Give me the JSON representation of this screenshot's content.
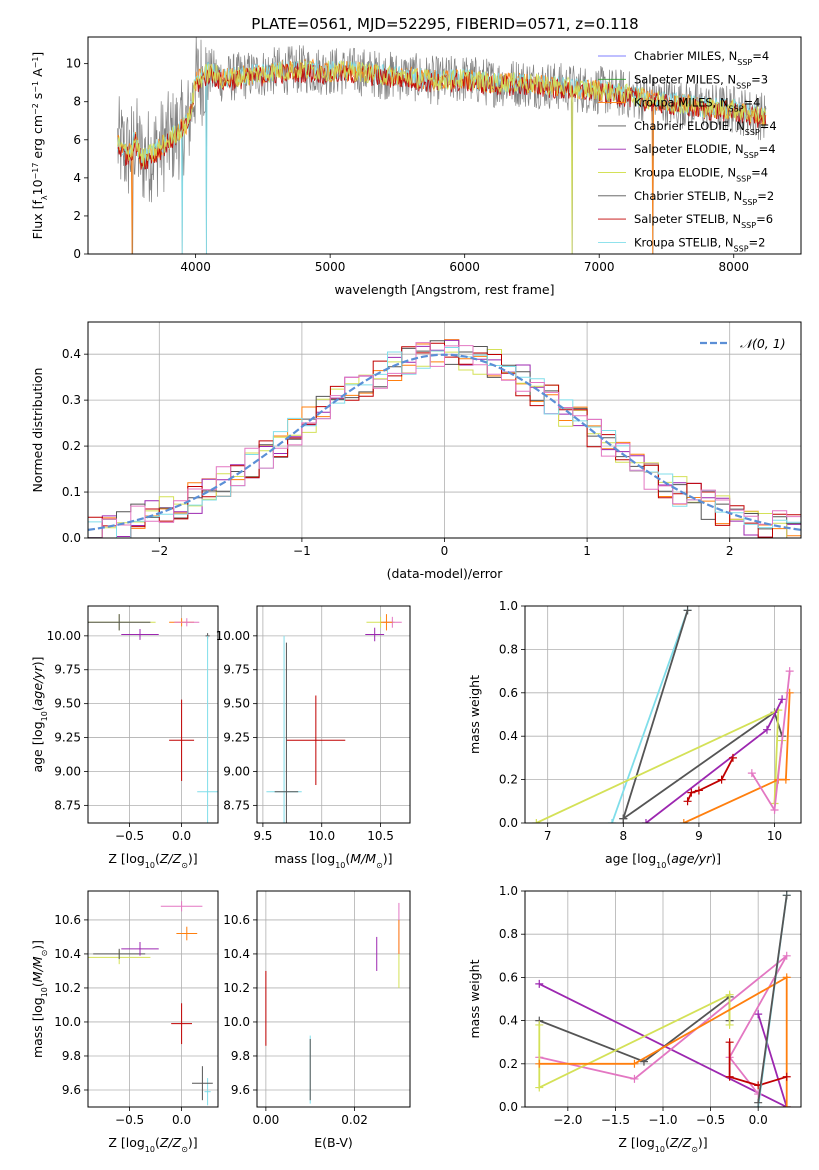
{
  "figure": {
    "title": "PLATE=0561, MJD=52295, FIBERID=0571, z=0.118"
  },
  "colors": {
    "series": [
      "#7f7fff",
      "#2ca02c",
      "#ff7f0e",
      "#555555",
      "#9c27b0",
      "#d4e157",
      "#555555",
      "#c00000",
      "#80deea"
    ],
    "pink": "#e377c2",
    "model_data": "#808080",
    "grid": "#b0b0b0",
    "normal_curve": "#5b8fd6"
  },
  "chart_data": [
    {
      "id": "spectrum",
      "type": "line",
      "xlabel": "wavelength [Angstrom, rest frame]",
      "ylabel": "Flux [f_λ10^-17 erg cm^-2 s^-1 A^-1]",
      "xlim": [
        3200,
        8500
      ],
      "ylim": [
        0,
        11.4
      ],
      "xticks": [
        4000,
        5000,
        6000,
        7000,
        8000
      ],
      "yticks": [
        0,
        2,
        4,
        6,
        8,
        10
      ],
      "grid": false,
      "legend_position": "top-right",
      "legend": [
        {
          "imf": "Chabrier MILES",
          "n": "4"
        },
        {
          "imf": "Salpeter MILES",
          "n": "3"
        },
        {
          "imf": "Kroupa MILES",
          "n": "4"
        },
        {
          "imf": "Chabrier ELODIE",
          "n": "4"
        },
        {
          "imf": "Salpeter ELODIE",
          "n": "4"
        },
        {
          "imf": "Kroupa ELODIE",
          "n": "4"
        },
        {
          "imf": "Chabrier STELIB",
          "n": "2"
        },
        {
          "imf": "Salpeter STELIB",
          "n": "6"
        },
        {
          "imf": "Kroupa STELIB",
          "n": "2"
        }
      ],
      "continuum": {
        "x": [
          3420,
          3500,
          3550,
          3600,
          3700,
          3800,
          3900,
          3950,
          4000,
          4100,
          4200,
          4400,
          4600,
          4800,
          5000,
          5200,
          5400,
          5600,
          5800,
          6000,
          6200,
          6400,
          6600,
          6800,
          7000,
          7200,
          7400,
          7600,
          7800,
          8000,
          8240
        ],
        "y": [
          5.8,
          5.2,
          6.0,
          5.0,
          5.4,
          6.0,
          6.6,
          7.0,
          9.0,
          9.6,
          9.2,
          9.4,
          9.6,
          9.7,
          9.6,
          9.6,
          9.4,
          9.3,
          9.1,
          9.2,
          9.0,
          9.0,
          8.9,
          8.7,
          8.6,
          8.4,
          8.1,
          7.9,
          7.7,
          7.6,
          7.2
        ]
      },
      "masked_drops": [
        3530,
        3900,
        4080,
        6800,
        7400
      ]
    },
    {
      "id": "residuals",
      "type": "histogram",
      "xlabel": "(data-model)/error",
      "ylabel": "Normed distribution",
      "xlim": [
        -2.5,
        2.5
      ],
      "ylim": [
        0,
        0.47
      ],
      "xticks": [
        -2,
        -1,
        0,
        1,
        2
      ],
      "yticks": [
        0,
        0.1,
        0.2,
        0.3,
        0.4
      ],
      "grid": true,
      "bin_width": 0.1,
      "legend_position": "top-right",
      "reference_curve": {
        "name": "𝒩(0, 1)",
        "mu": 0,
        "sigma": 1
      }
    },
    {
      "id": "age_vs_Z",
      "type": "scatter",
      "xlabel": "Z [log10(Z/Z☉)]",
      "ylabel": "age  [log10(age/yr)]",
      "xlim": [
        -0.9,
        0.35
      ],
      "ylim": [
        8.62,
        10.22
      ],
      "xticks": [
        -0.5,
        0.0
      ],
      "yticks": [
        8.75,
        9.0,
        9.25,
        9.5,
        9.75,
        10.0
      ],
      "grid": true,
      "points": [
        {
          "x": -0.6,
          "y": 10.1,
          "xerr": 0.35,
          "yerr": 0.06,
          "c": 5
        },
        {
          "x": -0.6,
          "y": 10.1,
          "xerr": 0.3,
          "yerr": 0.06,
          "c": 3
        },
        {
          "x": -0.4,
          "y": 10.01,
          "xerr": 0.18,
          "yerr": 0.04,
          "c": 4
        },
        {
          "x": 0.0,
          "y": 10.1,
          "xerr": 0.12,
          "yerr": 0.03,
          "c": 2
        },
        {
          "x": 0.05,
          "y": 10.1,
          "xerr": 0.12,
          "yerr": 0.03,
          "c": -1
        },
        {
          "x": 0.25,
          "y": 10.0,
          "xerr": 0.02,
          "yerr": 0.02,
          "c": 3
        },
        {
          "x": 0.0,
          "y": 9.23,
          "xerr": 0.12,
          "yerr": 0.3,
          "c": 7
        },
        {
          "x": 0.25,
          "y": 8.85,
          "xerr": 0.1,
          "yerr": 1.15,
          "c": 8
        }
      ]
    },
    {
      "id": "age_vs_mass",
      "type": "scatter",
      "xlabel": "mass [log10(M/M☉)]",
      "ylabel": "",
      "xlim": [
        9.45,
        10.75
      ],
      "ylim": [
        8.62,
        10.22
      ],
      "xticks": [
        9.5,
        10.0,
        10.5
      ],
      "yticks": [
        8.75,
        9.0,
        9.25,
        9.5,
        9.75,
        10.0
      ],
      "grid": true,
      "points": [
        {
          "x": 10.5,
          "y": 10.1,
          "xerr": 0.12,
          "yerr": 0.04,
          "c": 5
        },
        {
          "x": 10.6,
          "y": 10.1,
          "xerr": 0.08,
          "yerr": 0.04,
          "c": -1
        },
        {
          "x": 10.55,
          "y": 10.1,
          "xerr": 0.05,
          "yerr": 0.06,
          "c": 2
        },
        {
          "x": 10.45,
          "y": 10.01,
          "xerr": 0.08,
          "yerr": 0.05,
          "c": 4
        },
        {
          "x": 9.95,
          "y": 9.23,
          "xerr": 0.25,
          "yerr": 0.33,
          "c": 7
        },
        {
          "x": 9.68,
          "y": 8.85,
          "xerr": 0.15,
          "yerr": 1.15,
          "c": 8
        },
        {
          "x": 9.7,
          "y": 8.85,
          "xerr": 0.1,
          "yerr": 1.1,
          "c": 6
        }
      ]
    },
    {
      "id": "weight_vs_age",
      "type": "line",
      "xlabel": "age  [log10(age/yr)]",
      "ylabel": "mass weight",
      "xlim": [
        6.7,
        10.35
      ],
      "ylim": [
        0,
        1.0
      ],
      "xticks": [
        7,
        8,
        9,
        10
      ],
      "yticks": [
        0.0,
        0.2,
        0.4,
        0.6,
        0.8,
        1.0
      ],
      "grid": true,
      "series": [
        {
          "c": 8,
          "x": [
            7.85,
            8.85
          ],
          "y": [
            0.0,
            0.98
          ]
        },
        {
          "c": 6,
          "x": [
            8.0,
            8.85
          ],
          "y": [
            0.02,
            0.98
          ]
        },
        {
          "c": 3,
          "x": [
            8.0,
            10.0,
            10.1
          ],
          "y": [
            0.02,
            0.51,
            0.4
          ]
        },
        {
          "c": 5,
          "x": [
            6.85,
            10.05,
            10.0,
            10.1
          ],
          "y": [
            0.0,
            0.52,
            0.09,
            0.38
          ]
        },
        {
          "c": 4,
          "x": [
            8.3,
            9.9,
            10.1
          ],
          "y": [
            0.0,
            0.43,
            0.57
          ]
        },
        {
          "c": 7,
          "x": [
            8.85,
            8.9,
            9.0,
            9.3,
            9.45
          ],
          "y": [
            0.1,
            0.14,
            0.15,
            0.2,
            0.3
          ]
        },
        {
          "c": 2,
          "x": [
            8.8,
            10.05,
            10.15,
            10.2
          ],
          "y": [
            0.0,
            0.2,
            0.2,
            0.6
          ]
        },
        {
          "c": -1,
          "x": [
            9.7,
            10.0,
            10.2
          ],
          "y": [
            0.23,
            0.06,
            0.7
          ]
        }
      ]
    },
    {
      "id": "mass_vs_Z",
      "type": "scatter",
      "xlabel": "Z [log10(Z/Z☉)]",
      "ylabel": "mass [log10(M/M☉)]",
      "xlim": [
        -0.9,
        0.35
      ],
      "ylim": [
        9.5,
        10.77
      ],
      "xticks": [
        -0.5,
        0.0
      ],
      "yticks": [
        9.6,
        9.8,
        10.0,
        10.2,
        10.4,
        10.6
      ],
      "grid": true,
      "points": [
        {
          "x": -0.6,
          "y": 10.38,
          "xerr": 0.3,
          "yerr": 0.04,
          "c": 5
        },
        {
          "x": -0.6,
          "y": 10.4,
          "xerr": 0.25,
          "yerr": 0.03,
          "c": 3
        },
        {
          "x": -0.4,
          "y": 10.43,
          "xerr": 0.18,
          "yerr": 0.04,
          "c": 4
        },
        {
          "x": 0.0,
          "y": 10.68,
          "xerr": 0.2,
          "yerr": 0.03,
          "c": -1
        },
        {
          "x": 0.05,
          "y": 10.52,
          "xerr": 0.1,
          "yerr": 0.04,
          "c": 2
        },
        {
          "x": 0.0,
          "y": 9.99,
          "xerr": 0.1,
          "yerr": 0.12,
          "c": 7
        },
        {
          "x": 0.25,
          "y": 9.59,
          "xerr": 0.03,
          "yerr": 0.08,
          "c": 8
        },
        {
          "x": 0.2,
          "y": 9.64,
          "xerr": 0.1,
          "yerr": 0.1,
          "c": 6
        }
      ]
    },
    {
      "id": "mass_vs_ebv",
      "type": "scatter",
      "xlabel": "E(B-V)",
      "ylabel": "",
      "xlim": [
        -0.002,
        0.0325
      ],
      "ylim": [
        9.5,
        10.77
      ],
      "xticks": [
        0.0,
        0.02
      ],
      "yticks": [
        9.6,
        9.8,
        10.0,
        10.2,
        10.4,
        10.6
      ],
      "grid": true,
      "points": [
        {
          "x": 0.0,
          "y": 10.08,
          "xerr": 0.0,
          "yerr": 0.22,
          "c": 7
        },
        {
          "x": 0.01,
          "y": 9.72,
          "xerr": 0.0,
          "yerr": 0.2,
          "c": 8
        },
        {
          "x": 0.01,
          "y": 9.72,
          "xerr": 0.0,
          "yerr": 0.18,
          "c": 6
        },
        {
          "x": 0.025,
          "y": 10.4,
          "xerr": 0.0,
          "yerr": 0.1,
          "c": 4
        },
        {
          "x": 0.03,
          "y": 10.55,
          "xerr": 0.0,
          "yerr": 0.15,
          "c": -1
        },
        {
          "x": 0.03,
          "y": 10.5,
          "xerr": 0.0,
          "yerr": 0.1,
          "c": 2
        },
        {
          "x": 0.03,
          "y": 10.3,
          "xerr": 0.0,
          "yerr": 0.1,
          "c": 5
        }
      ]
    },
    {
      "id": "weight_vs_Z",
      "type": "line",
      "xlabel": "Z [log10(Z/Z☉)]",
      "ylabel": "mass weight",
      "xlim": [
        -2.45,
        0.45
      ],
      "ylim": [
        0,
        1.0
      ],
      "xticks": [
        -2.0,
        -1.5,
        -1.0,
        -0.5,
        0.0
      ],
      "yticks": [
        0.0,
        0.2,
        0.4,
        0.6,
        0.8,
        1.0
      ],
      "grid": true,
      "series": [
        {
          "c": 4,
          "x": [
            -2.3,
            0.3,
            0.0,
            0.3
          ],
          "y": [
            0.57,
            0.0,
            0.43,
            0.0
          ]
        },
        {
          "c": -1,
          "x": [
            -2.3,
            -1.3,
            0.3,
            -0.3,
            0.0
          ],
          "y": [
            0.23,
            0.13,
            0.7,
            0.23,
            0.06
          ]
        },
        {
          "c": 3,
          "x": [
            -2.3,
            -1.2,
            -0.3,
            -0.3
          ],
          "y": [
            0.4,
            0.21,
            0.51,
            0.4
          ]
        },
        {
          "c": 5,
          "x": [
            -2.3,
            -2.3,
            -0.3,
            -0.3
          ],
          "y": [
            0.38,
            0.09,
            0.52,
            0.38
          ]
        },
        {
          "c": 2,
          "x": [
            -2.3,
            -1.3,
            0.3,
            0.3
          ],
          "y": [
            0.2,
            0.2,
            0.6,
            0.0
          ]
        },
        {
          "c": 7,
          "x": [
            -0.3,
            -0.3,
            0.0,
            0.3
          ],
          "y": [
            0.3,
            0.14,
            0.1,
            0.14
          ]
        },
        {
          "c": 8,
          "x": [
            0.0,
            0.3
          ],
          "y": [
            0.0,
            0.98
          ]
        },
        {
          "c": 6,
          "x": [
            0.0,
            0.3
          ],
          "y": [
            0.02,
            0.98
          ]
        }
      ]
    }
  ]
}
